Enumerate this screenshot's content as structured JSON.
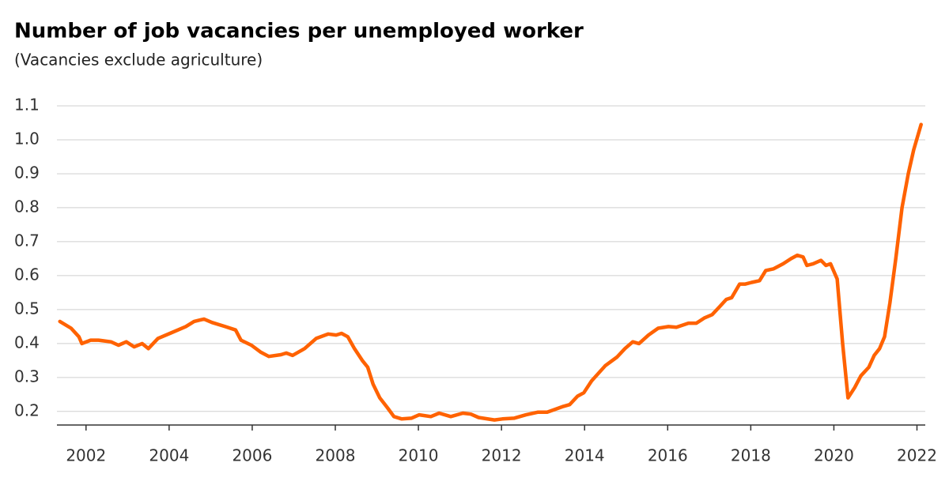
{
  "chart_data": {
    "type": "line",
    "title": "Number of job vacancies per unemployed worker",
    "subtitle": "(Vacancies exclude agriculture)",
    "x": [
      2001.37,
      2001.64,
      2001.83,
      2001.9,
      2002.11,
      2002.3,
      2002.6,
      2002.78,
      2002.97,
      2003.16,
      2003.35,
      2003.5,
      2003.73,
      2004.02,
      2004.4,
      2004.6,
      2004.84,
      2005.03,
      2005.35,
      2005.6,
      2005.73,
      2005.98,
      2006.2,
      2006.4,
      2006.69,
      2006.82,
      2006.97,
      2007.26,
      2007.54,
      2007.83,
      2008.02,
      2008.15,
      2008.3,
      2008.46,
      2008.65,
      2008.78,
      2008.91,
      2009.07,
      2009.26,
      2009.41,
      2009.6,
      2009.83,
      2010.02,
      2010.3,
      2010.5,
      2010.78,
      2011.07,
      2011.26,
      2011.45,
      2011.83,
      2012.02,
      2012.3,
      2012.59,
      2012.88,
      2013.1,
      2013.26,
      2013.49,
      2013.64,
      2013.83,
      2013.98,
      2014.17,
      2014.5,
      2014.78,
      2014.97,
      2015.16,
      2015.31,
      2015.54,
      2015.77,
      2016.02,
      2016.21,
      2016.5,
      2016.69,
      2016.88,
      2017.07,
      2017.26,
      2017.41,
      2017.54,
      2017.73,
      2017.87,
      2018.02,
      2018.21,
      2018.36,
      2018.55,
      2018.78,
      2018.97,
      2019.12,
      2019.26,
      2019.35,
      2019.5,
      2019.69,
      2019.81,
      2019.92,
      2020.08,
      2020.21,
      2020.34,
      2020.5,
      2020.65,
      2020.84,
      2020.97,
      2021.1,
      2021.22,
      2021.35,
      2021.49,
      2021.64,
      2021.79,
      2021.92,
      2022.1
    ],
    "series": [
      {
        "name": "Vacancies per unemployed worker",
        "color": "#ff6200",
        "values": [
          0.465,
          0.445,
          0.42,
          0.4,
          0.41,
          0.41,
          0.405,
          0.395,
          0.405,
          0.39,
          0.4,
          0.385,
          0.415,
          0.43,
          0.45,
          0.465,
          0.472,
          0.462,
          0.45,
          0.44,
          0.41,
          0.395,
          0.375,
          0.362,
          0.367,
          0.372,
          0.365,
          0.385,
          0.415,
          0.428,
          0.425,
          0.43,
          0.42,
          0.385,
          0.35,
          0.33,
          0.28,
          0.24,
          0.21,
          0.185,
          0.178,
          0.18,
          0.19,
          0.185,
          0.195,
          0.185,
          0.195,
          0.192,
          0.182,
          0.175,
          0.178,
          0.18,
          0.19,
          0.198,
          0.198,
          0.205,
          0.215,
          0.22,
          0.245,
          0.255,
          0.29,
          0.335,
          0.36,
          0.385,
          0.405,
          0.4,
          0.425,
          0.445,
          0.45,
          0.448,
          0.46,
          0.46,
          0.475,
          0.485,
          0.51,
          0.53,
          0.535,
          0.575,
          0.575,
          0.58,
          0.585,
          0.615,
          0.62,
          0.635,
          0.65,
          0.66,
          0.655,
          0.63,
          0.635,
          0.645,
          0.63,
          0.635,
          0.59,
          0.4,
          0.24,
          0.27,
          0.305,
          0.33,
          0.365,
          0.385,
          0.42,
          0.52,
          0.65,
          0.8,
          0.9,
          0.97,
          1.045
        ]
      }
    ],
    "xlim": [
      2001.3,
      2022.2
    ],
    "xticks": [
      2002,
      2004,
      2006,
      2008,
      2010,
      2012,
      2014,
      2016,
      2018,
      2020,
      2022
    ],
    "ylim": [
      0.16,
      1.1
    ],
    "yticks": [
      0.2,
      0.3,
      0.4,
      0.5,
      0.6,
      0.7,
      0.8,
      0.9,
      {
        "value": 1,
        "label": "1.0"
      },
      1.1
    ],
    "grid": true
  }
}
